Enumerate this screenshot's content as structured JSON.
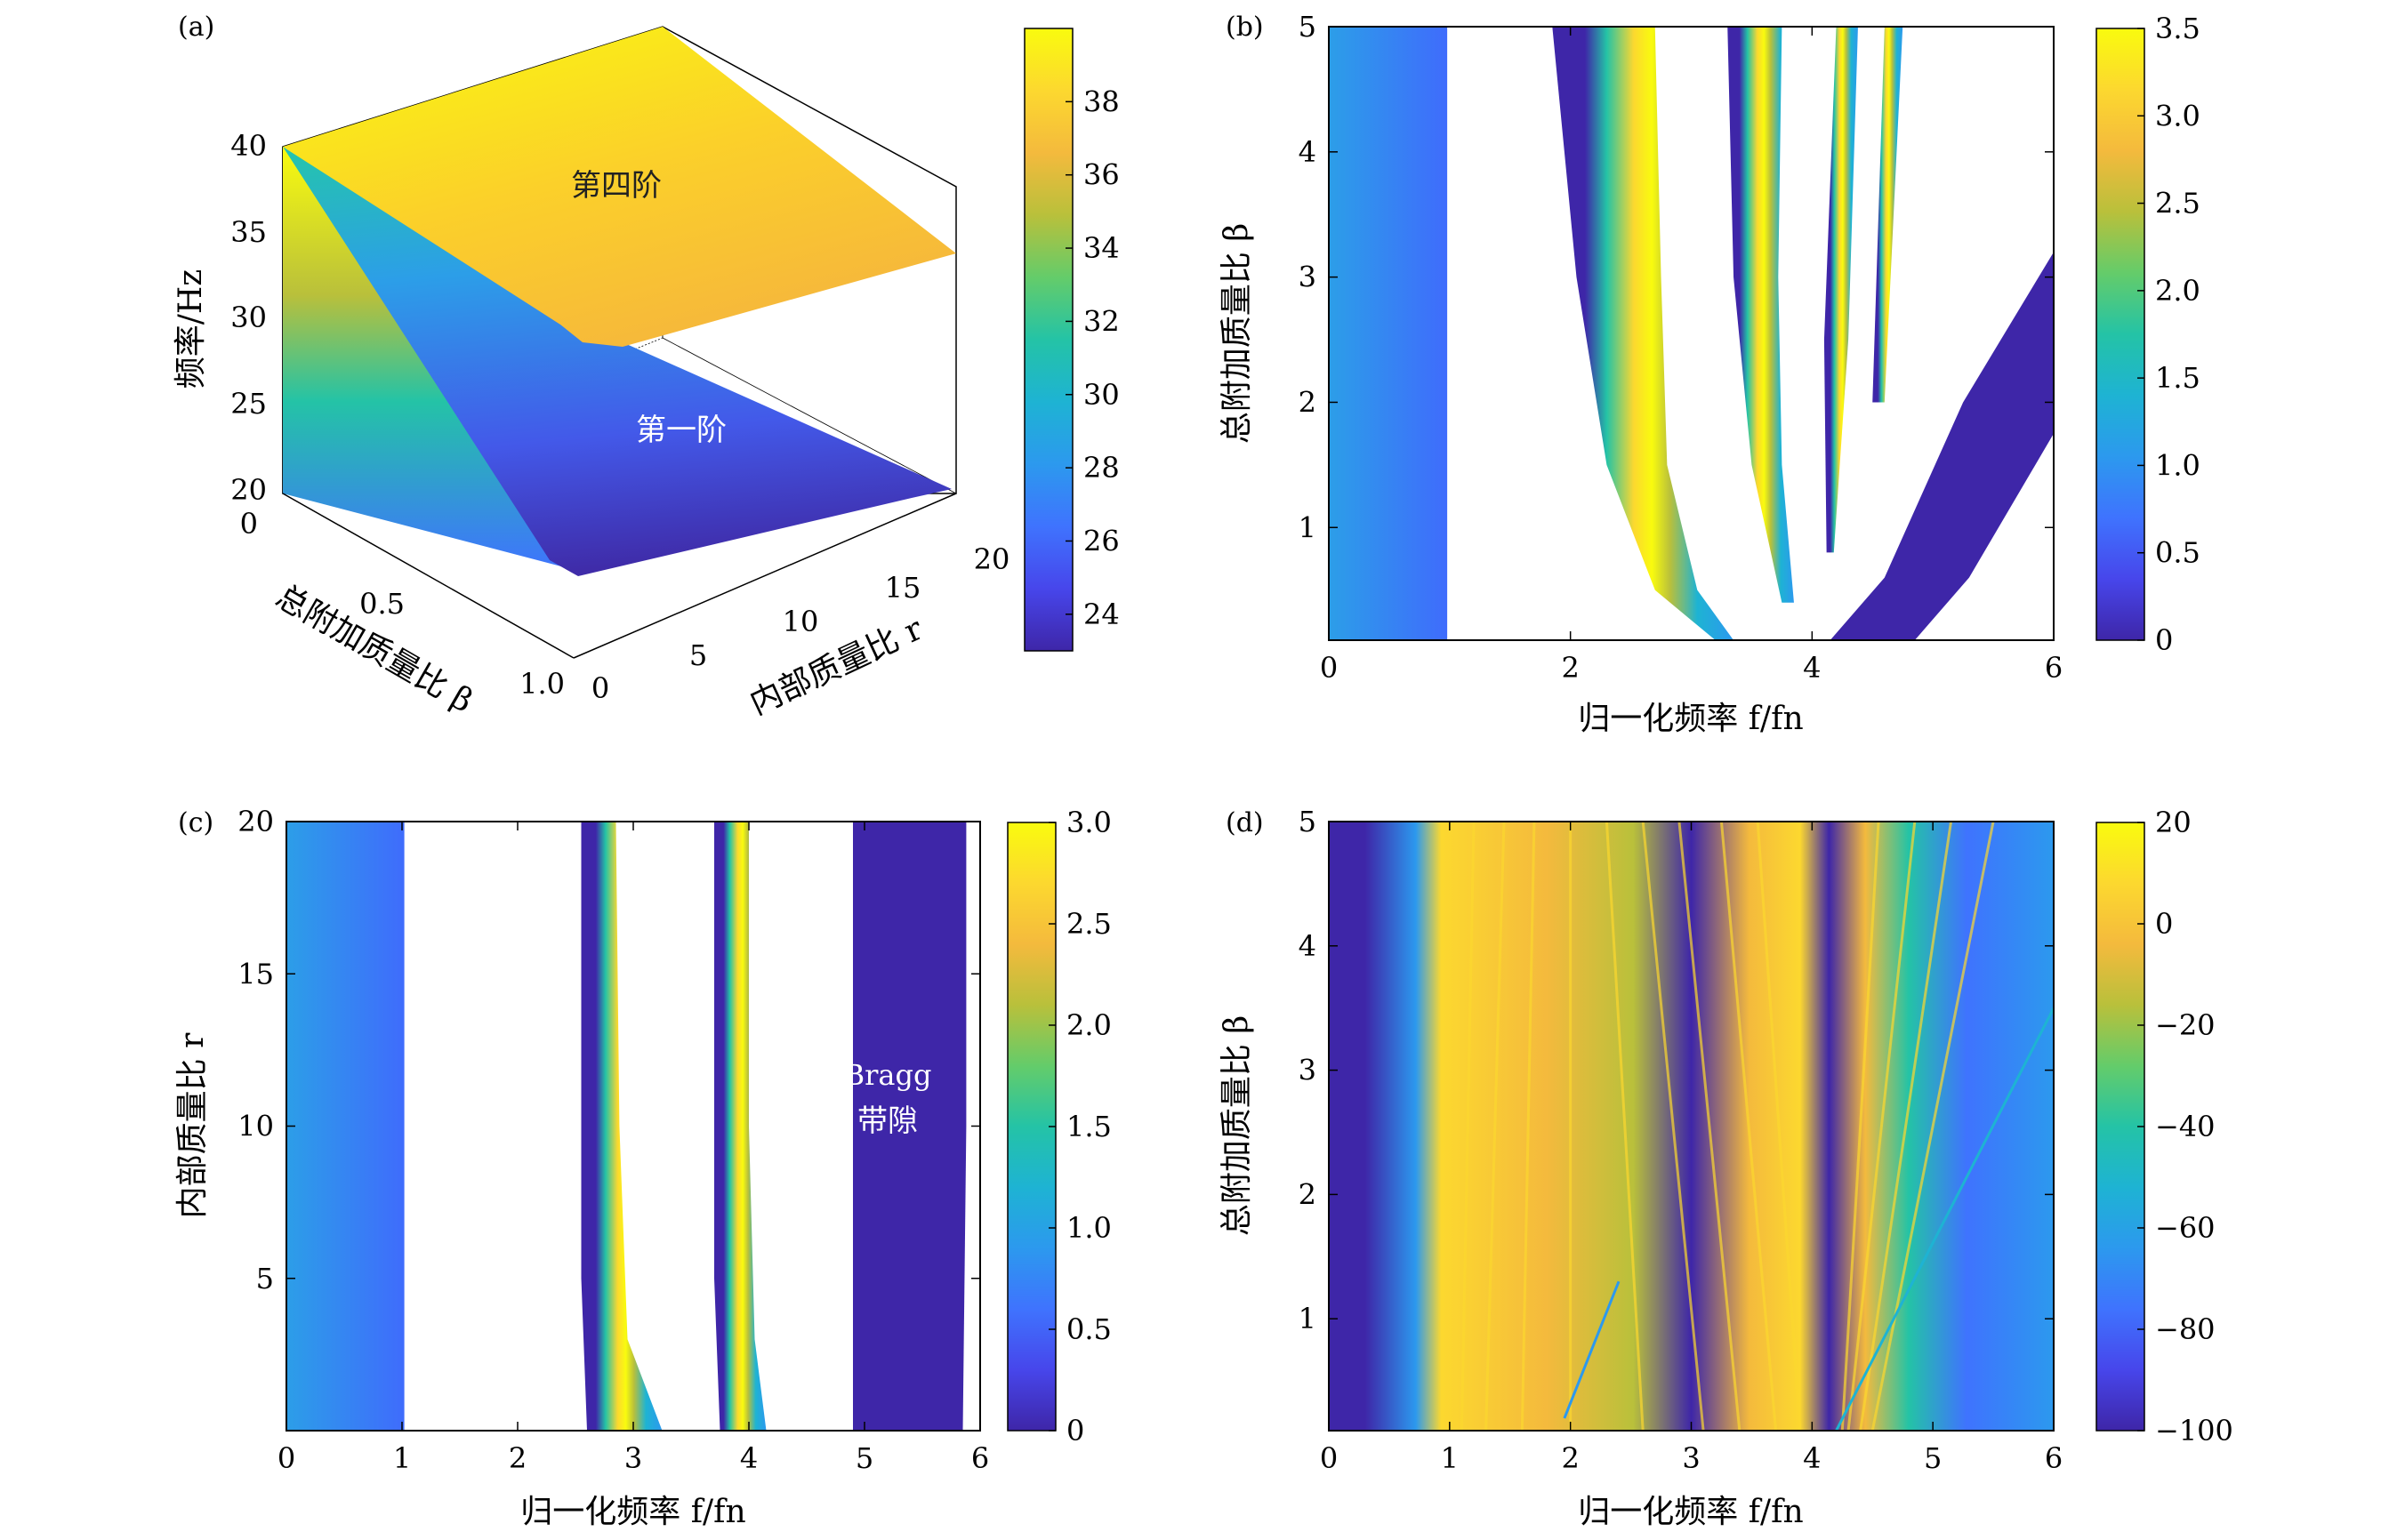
{
  "figure": {
    "colormap": [
      "#3e26a8",
      "#4746eb",
      "#3f73fe",
      "#2c99ee",
      "#1eb3d3",
      "#24c3a6",
      "#64cc6a",
      "#b9c03b",
      "#f4ba3d",
      "#fcd82f",
      "#f9fb0e"
    ],
    "white": "#ffffff"
  },
  "chart_data": [
    {
      "panel": "(a)",
      "type": "surface",
      "zlabel": "频率/Hz",
      "xlabel": "总附加质量比 β",
      "ylabel": "内部质量比 r",
      "z_ticks": [
        "20",
        "25",
        "30",
        "35",
        "40"
      ],
      "beta_ticks": [
        "0",
        "0.5",
        "1.0"
      ],
      "r_ticks": [
        "0",
        "5",
        "10",
        "15",
        "20"
      ],
      "zlim": [
        20,
        40
      ],
      "beta_range": [
        0,
        1.0
      ],
      "r_range": [
        0,
        20
      ],
      "surfaces": [
        {
          "label": "第四阶",
          "corners": {
            "beta0_r0": 40,
            "beta0_r20": 40,
            "beta1_r0": 29,
            "beta1_r20": 34
          }
        },
        {
          "label": "第一阶",
          "corners": {
            "beta0_r0": 40,
            "beta0_r20": 40,
            "beta1_r0": 23,
            "beta1_r20": 28
          }
        }
      ],
      "colorbar": {
        "ticks": [
          "24",
          "26",
          "28",
          "30",
          "32",
          "34",
          "36",
          "38"
        ],
        "range": [
          23,
          40
        ]
      }
    },
    {
      "panel": "(b)",
      "type": "heatmap",
      "xlabel": "归一化频率 f/fn",
      "ylabel": "总附加质量比 β",
      "x_ticks": [
        "0",
        "2",
        "4",
        "6"
      ],
      "y_ticks": [
        "1",
        "2",
        "3",
        "4",
        "5"
      ],
      "xlim": [
        0,
        6
      ],
      "ylim": [
        0.1,
        5
      ],
      "colorbar": {
        "ticks": [
          "0",
          "0.5",
          "1.0",
          "1.5",
          "2.0",
          "2.5",
          "3.0",
          "3.5"
        ],
        "range": [
          0,
          3.5
        ]
      },
      "bands": [
        {
          "left": [
            [
              0,
              0.1
            ],
            [
              0,
              5
            ]
          ],
          "right": [
            [
              0.98,
              0.1
            ],
            [
              0.98,
              5
            ]
          ],
          "value_left": 1.1,
          "value_right": 0.8
        },
        {
          "left": [
            [
              3.2,
              0.1
            ],
            [
              2.7,
              0.5
            ],
            [
              2.3,
              1.5
            ],
            [
              2.05,
              3
            ],
            [
              1.85,
              5
            ]
          ],
          "right": [
            [
              3.35,
              0.1
            ],
            [
              3.05,
              0.5
            ],
            [
              2.8,
              1.5
            ],
            [
              2.75,
              3
            ],
            [
              2.7,
              5
            ]
          ]
        },
        {
          "left": [
            [
              3.75,
              0.4
            ],
            [
              3.5,
              1.5
            ],
            [
              3.35,
              3
            ],
            [
              3.3,
              5
            ]
          ],
          "right": [
            [
              3.85,
              0.4
            ],
            [
              3.75,
              1.5
            ],
            [
              3.72,
              3
            ],
            [
              3.75,
              5
            ]
          ]
        },
        {
          "left": [
            [
              4.12,
              0.8
            ],
            [
              4.1,
              2.5
            ],
            [
              4.2,
              5
            ]
          ],
          "right": [
            [
              4.18,
              0.8
            ],
            [
              4.3,
              2.5
            ],
            [
              4.38,
              5
            ]
          ]
        },
        {
          "left": [
            [
              4.5,
              2
            ],
            [
              4.6,
              5
            ]
          ],
          "right": [
            [
              4.6,
              2
            ],
            [
              4.75,
              5
            ]
          ]
        },
        {
          "left": [
            [
              4.15,
              0.1
            ],
            [
              4.6,
              0.6
            ],
            [
              5.25,
              2
            ],
            [
              6,
              3.2
            ]
          ],
          "right": [
            [
              4.85,
              0.1
            ],
            [
              5.3,
              0.6
            ],
            [
              6,
              1.75
            ],
            [
              6,
              3.2
            ]
          ],
          "value": 0
        }
      ]
    },
    {
      "panel": "(c)",
      "type": "heatmap",
      "xlabel": "归一化频率 f/fn",
      "ylabel": "内部质量比 r",
      "x_ticks": [
        "0",
        "1",
        "2",
        "3",
        "4",
        "5",
        "6"
      ],
      "y_ticks": [
        "5",
        "10",
        "15",
        "20"
      ],
      "xlim": [
        0,
        6
      ],
      "ylim": [
        0,
        20
      ],
      "colorbar": {
        "ticks": [
          "0",
          "0.5",
          "1.0",
          "1.5",
          "2.0",
          "2.5",
          "3.0"
        ],
        "range": [
          0,
          3.0
        ]
      },
      "annotation": {
        "line1": "Bragg",
        "line2": "带隙"
      },
      "bands": [
        {
          "left": [
            [
              0,
              0
            ],
            [
              0,
              20
            ]
          ],
          "right": [
            [
              1.02,
              0
            ],
            [
              1.02,
              20
            ]
          ],
          "value_left": 1.1,
          "value_right": 0.8
        },
        {
          "left": [
            [
              2.6,
              0
            ],
            [
              2.55,
              5
            ],
            [
              2.55,
              20
            ]
          ],
          "right": [
            [
              3.25,
              0
            ],
            [
              2.95,
              3
            ],
            [
              2.88,
              10
            ],
            [
              2.85,
              20
            ]
          ]
        },
        {
          "left": [
            [
              3.75,
              0
            ],
            [
              3.7,
              5
            ],
            [
              3.7,
              20
            ]
          ],
          "right": [
            [
              4.15,
              0
            ],
            [
              4.05,
              3
            ],
            [
              4.0,
              10
            ],
            [
              4.0,
              20
            ]
          ]
        },
        {
          "left": [
            [
              4.9,
              0
            ],
            [
              4.9,
              20
            ]
          ],
          "right": [
            [
              5.85,
              0
            ],
            [
              5.88,
              10
            ],
            [
              5.88,
              20
            ]
          ],
          "value": 0
        }
      ]
    },
    {
      "panel": "(d)",
      "type": "heatmap",
      "xlabel": "归一化频率 f/fn",
      "ylabel": "总附加质量比 β",
      "x_ticks": [
        "0",
        "1",
        "2",
        "3",
        "4",
        "5",
        "6"
      ],
      "y_ticks": [
        "1",
        "2",
        "3",
        "4",
        "5"
      ],
      "xlim": [
        0,
        6
      ],
      "ylim": [
        0.1,
        5
      ],
      "colorbar": {
        "ticks": [
          "20",
          "0",
          "−20",
          "−40",
          "−60",
          "−80",
          "−100"
        ],
        "range": [
          -100,
          20
        ]
      }
    }
  ]
}
